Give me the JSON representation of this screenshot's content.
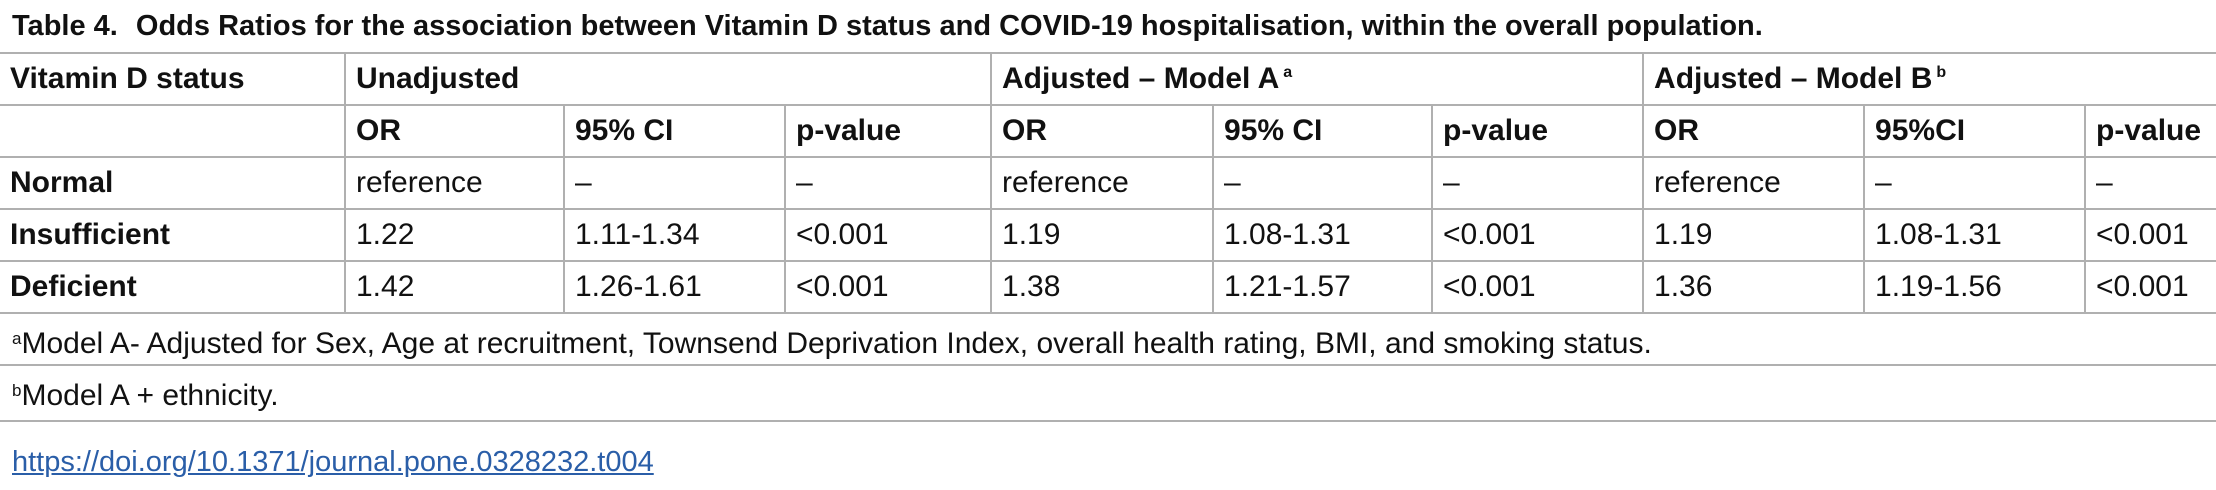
{
  "caption": {
    "label": "Table 4.",
    "title": "Odds Ratios for the association between Vitamin D status and COVID-19 hospitalisation, within the overall population."
  },
  "table": {
    "row_header": "Vitamin D status",
    "groups": [
      {
        "label": "Unadjusted",
        "sup": ""
      },
      {
        "label": "Adjusted – Model A",
        "sup": "a"
      },
      {
        "label": "Adjusted – Model B",
        "sup": "b"
      }
    ],
    "subheaders": [
      "OR",
      "95% CI",
      "p-value",
      "OR",
      "95% CI",
      "p-value",
      "OR",
      "95%CI",
      "p-value"
    ],
    "rows": [
      {
        "label": "Normal",
        "cells": [
          "reference",
          "–",
          "–",
          "reference",
          "–",
          "–",
          "reference",
          "–",
          "–"
        ]
      },
      {
        "label": "Insufficient",
        "cells": [
          "1.22",
          "1.11-1.34",
          "<0.001",
          "1.19",
          "1.08-1.31",
          "<0.001",
          "1.19",
          "1.08-1.31",
          "<0.001"
        ]
      },
      {
        "label": "Deficient",
        "cells": [
          "1.42",
          "1.26-1.61",
          "<0.001",
          "1.38",
          "1.21-1.57",
          "<0.001",
          "1.36",
          "1.19-1.56",
          "<0.001"
        ]
      }
    ]
  },
  "footnotes": [
    {
      "sup": "a",
      "text": "Model A- Adjusted for Sex, Age at recruitment, Townsend Deprivation Index, overall health rating, BMI, and smoking status."
    },
    {
      "sup": "b",
      "text": "Model A + ethnicity."
    }
  ],
  "doi_link": "https://doi.org/10.1371/journal.pone.0328232.t004",
  "colors": {
    "rule": "#b0b0b0",
    "link": "#2a5ea8"
  }
}
